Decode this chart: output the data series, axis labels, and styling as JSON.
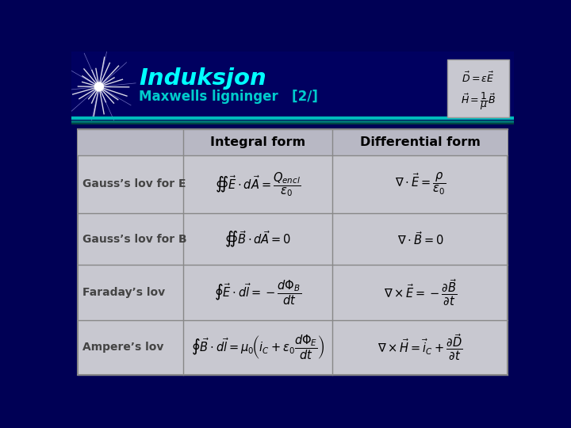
{
  "title": "Induksjon",
  "subtitle": "Maxwells ligninger   [2/]",
  "header_title_color": "#00FFFF",
  "header_subtitle_color": "#00CCCC",
  "row_labels": [
    "Gauss’s lov for E",
    "Gauss’s lov for B",
    "Faraday’s lov",
    "Ampere’s lov"
  ],
  "col_headers": [
    "Integral form",
    "Differential form"
  ],
  "integral_forms": [
    "$\\oiint \\vec{E}\\cdot d\\vec{A} = \\dfrac{Q_{encl}}{\\varepsilon_0}$",
    "$\\oiint \\vec{B}\\cdot d\\vec{A} = 0$",
    "$\\oint \\vec{E}\\cdot d\\vec{l} = -\\dfrac{d\\Phi_B}{dt}$",
    "$\\oint \\vec{B}\\cdot d\\vec{l} = \\mu_0\\!\\left(i_C + \\varepsilon_0\\dfrac{d\\Phi_E}{dt}\\right)$"
  ],
  "differential_forms": [
    "$\\nabla \\cdot \\vec{E} = \\dfrac{\\rho}{\\varepsilon_0}$",
    "$\\nabla \\cdot \\vec{B} = 0$",
    "$\\nabla \\times \\vec{E} = -\\dfrac{\\partial \\vec{B}}{\\partial t}$",
    "$\\nabla \\times \\vec{H} = \\vec{i}_C + \\dfrac{\\partial \\vec{D}}{\\partial t}$"
  ],
  "inset_text1": "$\\vec{D} = \\varepsilon\\vec{E}$",
  "inset_text2": "$\\vec{H} = \\dfrac{1}{\\mu}\\vec{B}$"
}
